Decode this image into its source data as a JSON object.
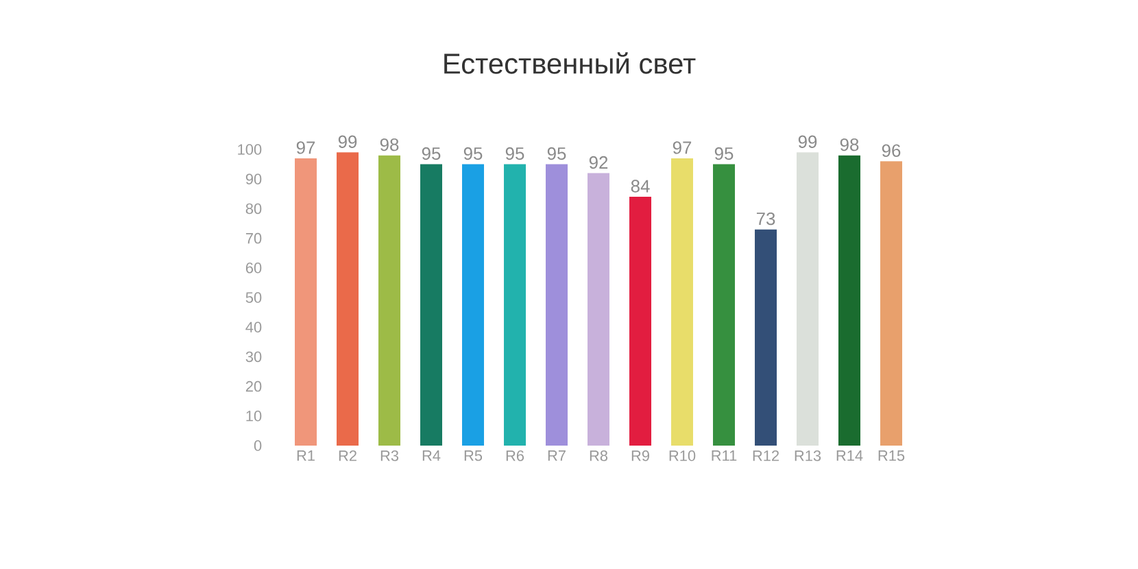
{
  "chart_data": {
    "type": "bar",
    "title": "Естественный свет",
    "categories": [
      "R1",
      "R2",
      "R3",
      "R4",
      "R5",
      "R6",
      "R7",
      "R8",
      "R9",
      "R10",
      "R11",
      "R12",
      "R13",
      "R14",
      "R15"
    ],
    "values": [
      97,
      99,
      98,
      95,
      95,
      95,
      95,
      92,
      84,
      97,
      95,
      73,
      99,
      98,
      96
    ],
    "colors": [
      "#f0967a",
      "#ea6a4a",
      "#9dbb47",
      "#177b62",
      "#1aa0e4",
      "#22b2ad",
      "#9e8fdb",
      "#c8b1db",
      "#e21d40",
      "#e8dd6a",
      "#36903f",
      "#334f77",
      "#dbe0da",
      "#1a6c2f",
      "#e8a06c"
    ],
    "ylim": [
      0,
      100
    ],
    "yticks": [
      0,
      10,
      20,
      30,
      40,
      50,
      60,
      70,
      80,
      90,
      100
    ],
    "data_labels": true,
    "grid": false
  }
}
